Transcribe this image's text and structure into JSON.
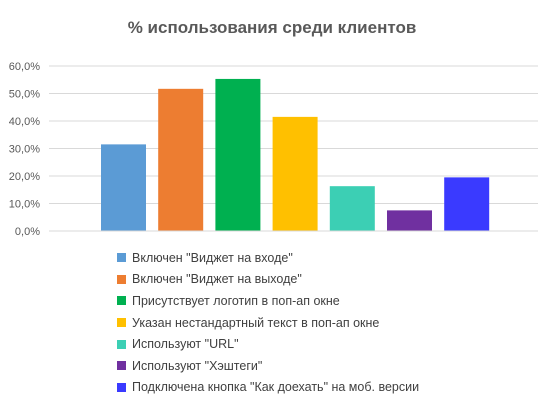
{
  "chart_data": {
    "type": "bar",
    "title": "% использования среди клиентов",
    "xlabel": "",
    "ylabel": "",
    "ylim": [
      0,
      0.6
    ],
    "y_ticks": [
      "0,0%",
      "10,0%",
      "20,0%",
      "30,0%",
      "40,0%",
      "50,0%",
      "60,0%"
    ],
    "grid": true,
    "legend_position": "bottom",
    "categories": [
      "Включен \"Виджет на входе\"",
      "Включен \"Виджет на выходе\"",
      "Присутствует логотип в поп-ап окне",
      "Указан нестандартный текст в поп-ап окне",
      "Используют \"URL\"",
      "Используют \"Хэштеги\"",
      "Подключена кнопка \"Как доехать\" на моб. версии"
    ],
    "values": [
      0.315,
      0.517,
      0.553,
      0.415,
      0.163,
      0.075,
      0.195
    ],
    "colors": [
      "#5B9BD5",
      "#ED7D31",
      "#00B050",
      "#FFC000",
      "#3CCFB4",
      "#7030A0",
      "#3A3AFF"
    ]
  }
}
